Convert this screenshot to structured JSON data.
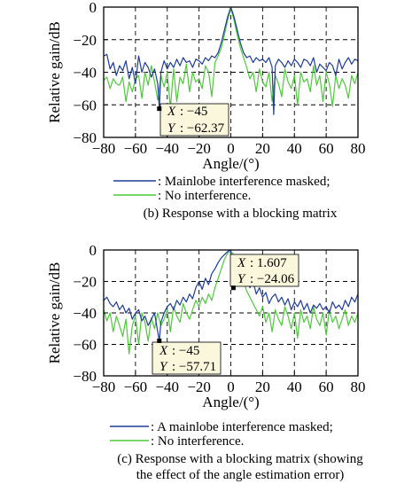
{
  "chart_data": [
    {
      "type": "line",
      "caption": "(b) Response with a blocking matrix",
      "xlabel": "Angle/(°)",
      "ylabel": "Relative gain/dB",
      "xlim": [
        -80,
        80
      ],
      "ylim": [
        -80,
        0
      ],
      "xticks": [
        "−80",
        "−60",
        "−40",
        "−20",
        "0",
        "20",
        "40",
        "60",
        "80"
      ],
      "yticks": [
        "0",
        "−20",
        "−40",
        "−60",
        "−80"
      ],
      "grid": "dashed",
      "legend_position": "bottom",
      "series": [
        {
          "name": ": Mainlobe interference masked;",
          "color": "#1f3c96",
          "x": [
            -80,
            -78,
            -76,
            -74,
            -72,
            -70,
            -68,
            -66,
            -64,
            -62,
            -60,
            -58,
            -56,
            -54,
            -52,
            -50,
            -48,
            -46,
            -45,
            -44,
            -42,
            -40,
            -38,
            -36,
            -34,
            -32,
            -30,
            -28,
            -26,
            -24,
            -22,
            -20,
            -18,
            -16,
            -14,
            -12,
            -10,
            -8,
            -6,
            -4,
            -2,
            0,
            2,
            4,
            6,
            8,
            10,
            12,
            14,
            16,
            18,
            20,
            22,
            24,
            26,
            27,
            28,
            30,
            32,
            34,
            36,
            38,
            40,
            42,
            44,
            46,
            48,
            50,
            52,
            54,
            56,
            58,
            60,
            62,
            64,
            66,
            68,
            70,
            72,
            74,
            76,
            78,
            80
          ],
          "y": [
            -30,
            -29,
            -38,
            -34,
            -42,
            -36,
            -39,
            -33,
            -44,
            -37,
            -47,
            -30,
            -40,
            -34,
            -37,
            -43,
            -38,
            -47,
            -62.37,
            -40,
            -33,
            -38,
            -34,
            -37,
            -32,
            -36,
            -31,
            -34,
            -33,
            -37,
            -32,
            -33,
            -35,
            -31,
            -33,
            -30,
            -31,
            -28,
            -22,
            -14,
            -6,
            0,
            -6,
            -14,
            -22,
            -28,
            -31,
            -30,
            -34,
            -31,
            -33,
            -32,
            -34,
            -31,
            -37,
            -66,
            -36,
            -32,
            -34,
            -37,
            -33,
            -36,
            -32,
            -34,
            -37,
            -32,
            -33,
            -36,
            -31,
            -40,
            -35,
            -37,
            -39,
            -34,
            -36,
            -42,
            -32,
            -38,
            -34,
            -31,
            -35,
            -32,
            -33
          ]
        },
        {
          "name": ": No interference.",
          "color": "#4fc83c",
          "x": [
            -80,
            -78,
            -76,
            -74,
            -72,
            -70,
            -68,
            -66,
            -64,
            -62,
            -60,
            -58,
            -56,
            -54,
            -52,
            -50,
            -48,
            -46,
            -44,
            -42,
            -40,
            -38,
            -36,
            -34,
            -32,
            -30,
            -28,
            -26,
            -24,
            -22,
            -20,
            -18,
            -16,
            -14,
            -12,
            -10,
            -8,
            -6,
            -4,
            -2,
            0,
            2,
            4,
            6,
            8,
            10,
            12,
            14,
            16,
            18,
            20,
            22,
            24,
            26,
            28,
            30,
            32,
            34,
            36,
            38,
            40,
            42,
            44,
            46,
            48,
            50,
            52,
            54,
            56,
            58,
            60,
            62,
            64,
            66,
            68,
            70,
            72,
            74,
            76,
            78,
            80
          ],
          "y": [
            -45,
            -43,
            -50,
            -44,
            -47,
            -48,
            -43,
            -58,
            -46,
            -52,
            -44,
            -42,
            -56,
            -40,
            -48,
            -36,
            -46,
            -57,
            -42,
            -49,
            -40,
            -62,
            -38,
            -58,
            -43,
            -47,
            -35,
            -52,
            -40,
            -46,
            -44,
            -50,
            -36,
            -40,
            -55,
            -34,
            -30,
            -25,
            -17,
            -8,
            -1,
            -8,
            -17,
            -25,
            -31,
            -37,
            -44,
            -40,
            -52,
            -38,
            -46,
            -49,
            -40,
            -58,
            -42,
            -47,
            -55,
            -38,
            -46,
            -50,
            -42,
            -60,
            -40,
            -46,
            -44,
            -52,
            -36,
            -48,
            -42,
            -58,
            -40,
            -47,
            -61,
            -42,
            -50,
            -44,
            -48,
            -56,
            -42,
            -47,
            -40
          ]
        }
      ],
      "datatip": {
        "x_label": "X",
        "x_value": ": −45",
        "y_label": "Y",
        "y_value": ": −62.37",
        "point": [
          -45,
          -62.37
        ]
      }
    },
    {
      "type": "line",
      "caption_lines": [
        "(c) Response with a blocking matrix (showing",
        "the effect of the angle estimation error)"
      ],
      "xlabel": "Angle/(°)",
      "ylabel": "Relative gain/dB",
      "xlim": [
        -80,
        80
      ],
      "ylim": [
        -80,
        0
      ],
      "xticks": [
        "−80",
        "−60",
        "−40",
        "−20",
        "0",
        "20",
        "40",
        "60",
        "80"
      ],
      "yticks": [
        "0",
        "−20",
        "−40",
        "−60",
        "−80"
      ],
      "grid": "dashed",
      "legend_position": "bottom",
      "series": [
        {
          "name": ": A mainlobe interference masked;",
          "color": "#1f3c96",
          "x": [
            -80,
            -78,
            -76,
            -74,
            -72,
            -70,
            -68,
            -66,
            -64,
            -62,
            -60,
            -58,
            -56,
            -54,
            -52,
            -50,
            -48,
            -46,
            -45,
            -44,
            -42,
            -40,
            -38,
            -36,
            -34,
            -32,
            -30,
            -28,
            -26,
            -24,
            -22,
            -20,
            -18,
            -16,
            -14,
            -12,
            -10,
            -8,
            -6,
            -4,
            -2,
            0,
            1.607,
            2,
            4,
            6,
            8,
            10,
            12,
            14,
            16,
            18,
            20,
            22,
            24,
            26,
            28,
            30,
            32,
            34,
            36,
            38,
            40,
            42,
            44,
            46,
            48,
            50,
            52,
            54,
            56,
            58,
            60,
            62,
            64,
            66,
            68,
            70,
            72,
            74,
            76,
            78,
            80
          ],
          "y": [
            -32,
            -30,
            -34,
            -36,
            -33,
            -38,
            -35,
            -40,
            -37,
            -44,
            -40,
            -38,
            -45,
            -42,
            -48,
            -44,
            -40,
            -52,
            -57.71,
            -46,
            -40,
            -36,
            -34,
            -38,
            -32,
            -35,
            -30,
            -33,
            -28,
            -31,
            -24,
            -20,
            -25,
            -18,
            -22,
            -15,
            -12,
            -8,
            -5,
            -3,
            -1,
            0,
            -24.06,
            -10,
            -16,
            -12,
            -20,
            -16,
            -24,
            -20,
            -28,
            -24,
            -30,
            -27,
            -34,
            -30,
            -28,
            -33,
            -30,
            -35,
            -31,
            -38,
            -33,
            -36,
            -32,
            -38,
            -34,
            -40,
            -35,
            -37,
            -34,
            -38,
            -36,
            -40,
            -33,
            -37,
            -35,
            -38,
            -32,
            -36,
            -30,
            -33,
            -28
          ]
        },
        {
          "name": ": No interference.",
          "color": "#4fc83c",
          "x": [
            -80,
            -78,
            -76,
            -74,
            -72,
            -70,
            -68,
            -66,
            -64,
            -62,
            -60,
            -58,
            -56,
            -54,
            -52,
            -50,
            -48,
            -46,
            -44,
            -42,
            -40,
            -38,
            -36,
            -34,
            -32,
            -30,
            -28,
            -26,
            -24,
            -22,
            -20,
            -18,
            -16,
            -14,
            -12,
            -10,
            -8,
            -6,
            -4,
            -2,
            0,
            2,
            4,
            6,
            8,
            10,
            12,
            14,
            16,
            18,
            20,
            22,
            24,
            26,
            28,
            30,
            32,
            34,
            36,
            38,
            40,
            42,
            44,
            46,
            48,
            50,
            52,
            54,
            56,
            58,
            60,
            62,
            64,
            66,
            68,
            70,
            72,
            74,
            76,
            78,
            80
          ],
          "y": [
            -38,
            -45,
            -40,
            -52,
            -42,
            -48,
            -55,
            -44,
            -66,
            -48,
            -42,
            -60,
            -40,
            -46,
            -58,
            -43,
            -50,
            -40,
            -48,
            -44,
            -38,
            -52,
            -36,
            -42,
            -46,
            -34,
            -40,
            -44,
            -38,
            -32,
            -36,
            -30,
            -34,
            -28,
            -32,
            -24,
            -18,
            -12,
            -6,
            -2,
            -1,
            -3,
            -8,
            -14,
            -20,
            -26,
            -30,
            -34,
            -38,
            -42,
            -36,
            -46,
            -40,
            -52,
            -38,
            -44,
            -48,
            -36,
            -42,
            -50,
            -40,
            -56,
            -38,
            -46,
            -42,
            -50,
            -36,
            -44,
            -48,
            -40,
            -54,
            -38,
            -46,
            -42,
            -50,
            -44,
            -38,
            -48,
            -42,
            -46,
            -40
          ]
        }
      ],
      "datatips": [
        {
          "x_label": "X",
          "x_value": ": −45",
          "y_label": "Y",
          "y_value": ": −57.71",
          "point": [
            -45,
            -57.71
          ]
        },
        {
          "x_label": "X",
          "x_value": ": 1.607",
          "y_label": "Y",
          "y_value": ": −24.06",
          "point": [
            1.607,
            -24.06
          ]
        }
      ]
    }
  ]
}
